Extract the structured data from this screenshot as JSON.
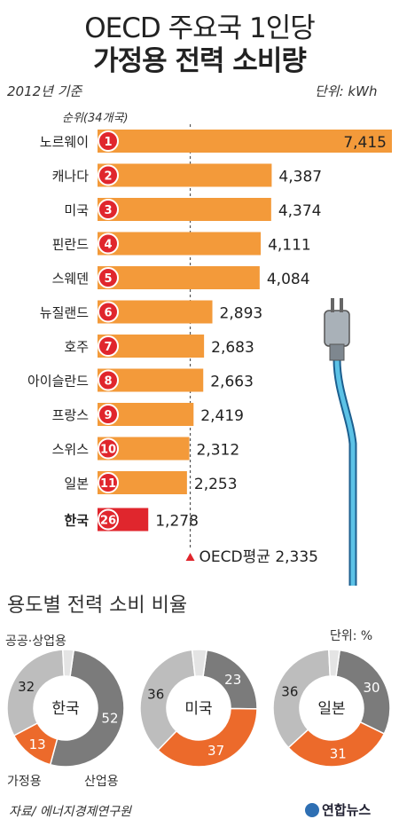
{
  "title_line1": "OECD 주요국 1인당",
  "title_line2": "가정용 전력 소비량",
  "year_note": "2012년 기준",
  "unit_note": "단위: kWh",
  "rank_header": "순위(34개국)",
  "avg_label": "OECD평균 2,335",
  "donut_section_title": "용도별 전력 소비 비율",
  "donut_unit": "단위: %",
  "source": "자료/ 에너지경제연구원",
  "logo": "연합뉴스",
  "colors": {
    "bar": "#f39a3a",
    "korea": "#e0262d",
    "badge": "#e0262d",
    "industrial": "#7b7b7b",
    "household": "#ec6a2b",
    "commercial": "#bdbdbd",
    "other": "#e4e4e4"
  },
  "chart_data": [
    {
      "type": "bar",
      "orientation": "horizontal",
      "title": "OECD 주요국 1인당 가정용 전력 소비량",
      "unit": "kWh",
      "categories": [
        "노르웨이",
        "캐나다",
        "미국",
        "핀란드",
        "스웨덴",
        "뉴질랜드",
        "호주",
        "아이슬란드",
        "프랑스",
        "스위스",
        "일본",
        "한국"
      ],
      "ranks": [
        1,
        2,
        3,
        4,
        5,
        6,
        7,
        8,
        9,
        10,
        11,
        26
      ],
      "values": [
        7415,
        4387,
        4374,
        4111,
        4084,
        2893,
        2683,
        2663,
        2419,
        2312,
        2253,
        1278
      ],
      "value_labels": [
        "7,415",
        "4,387",
        "4,374",
        "4,111",
        "4,084",
        "2,893",
        "2,683",
        "2,663",
        "2,419",
        "2,312",
        "2,253",
        "1,278"
      ],
      "reference_line": {
        "label": "OECD평균",
        "value": 2335
      },
      "xlim": [
        0,
        7415
      ]
    },
    {
      "type": "pie",
      "title": "용도별 전력 소비 비율",
      "unit": "%",
      "charts": [
        {
          "name": "한국",
          "slices": [
            {
              "label": "산업용",
              "value": 52
            },
            {
              "label": "가정용",
              "value": 13
            },
            {
              "label": "공공·상업용",
              "value": 32
            },
            {
              "label": "",
              "value": 3
            }
          ]
        },
        {
          "name": "미국",
          "slices": [
            {
              "label": "",
              "value": 23
            },
            {
              "label": "",
              "value": 37
            },
            {
              "label": "",
              "value": 36
            },
            {
              "label": "",
              "value": 4
            }
          ]
        },
        {
          "name": "일본",
          "slices": [
            {
              "label": "",
              "value": 30
            },
            {
              "label": "",
              "value": 31
            },
            {
              "label": "",
              "value": 36
            },
            {
              "label": "",
              "value": 3
            }
          ]
        }
      ]
    }
  ],
  "donut_annotations": {
    "commercial": "공공·상업용",
    "household": "가정용",
    "industrial": "산업용"
  }
}
